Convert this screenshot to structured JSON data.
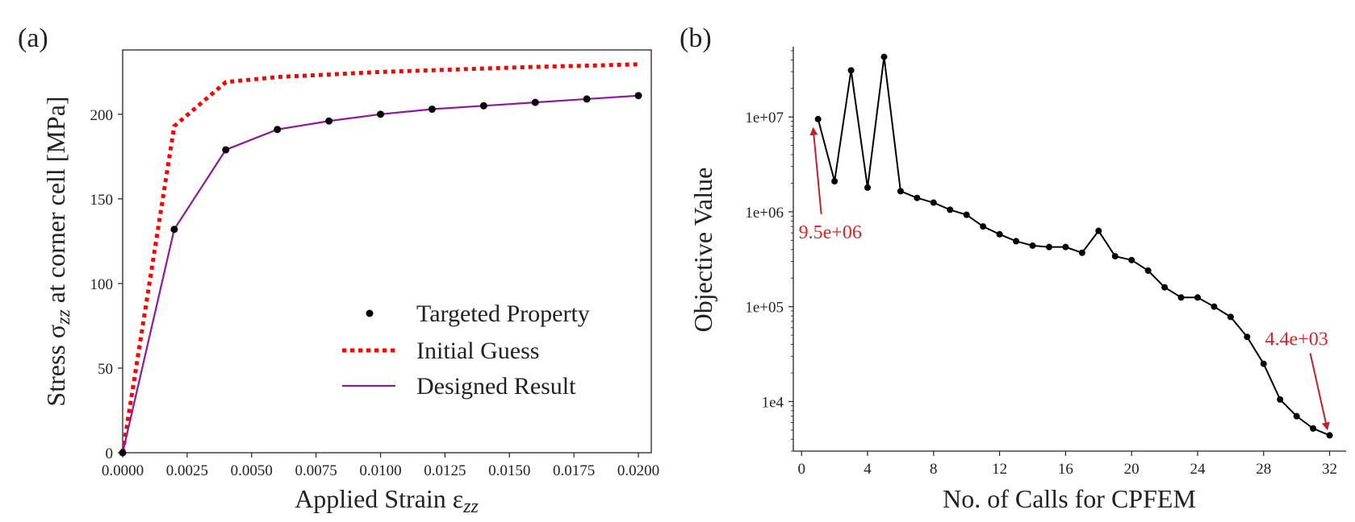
{
  "panel_labels": {
    "a": "(a)",
    "b": "(b)"
  },
  "chart_data": [
    {
      "type": "line",
      "panel": "(a)",
      "xlabel": "Applied Strain ε",
      "xlabel_sub": "zz",
      "ylabel_prefix": "Stress σ",
      "ylabel_sub": "zz",
      "ylabel_suffix": " at corner cell [MPa]",
      "xlim": [
        0,
        0.0205
      ],
      "ylim": [
        0,
        238
      ],
      "xticks": [
        0,
        0.0025,
        0.005,
        0.0075,
        0.01,
        0.0125,
        0.015,
        0.0175,
        0.02
      ],
      "xtick_labels": [
        "0.0000",
        "0.0025",
        "0.0050",
        "0.0075",
        "0.0100",
        "0.0125",
        "0.0150",
        "0.0175",
        "0.0200"
      ],
      "yticks": [
        0,
        50,
        100,
        150,
        200
      ],
      "ytick_labels": [
        "0",
        "50",
        "100",
        "150",
        "200"
      ],
      "grid": false,
      "legend_position": "lower-right",
      "series": [
        {
          "name": "Targeted Property",
          "style": "markers",
          "color": "#000000",
          "x": [
            0,
            0.002,
            0.004,
            0.006,
            0.008,
            0.01,
            0.012,
            0.014,
            0.016,
            0.018,
            0.02
          ],
          "y": [
            0,
            132,
            179,
            191,
            196,
            200,
            203,
            205,
            207,
            209,
            211
          ]
        },
        {
          "name": "Initial Guess",
          "style": "dotted",
          "color": "#ff0000",
          "x": [
            0,
            0.002,
            0.004,
            0.006,
            0.008,
            0.01,
            0.012,
            0.014,
            0.016,
            0.018,
            0.02
          ],
          "y": [
            0,
            193,
            219,
            222,
            223.5,
            225,
            226,
            227,
            228,
            228.7,
            229.5
          ]
        },
        {
          "name": "Designed Result",
          "style": "solid",
          "color": "#8b1a9a",
          "x": [
            0,
            0.002,
            0.004,
            0.006,
            0.008,
            0.01,
            0.012,
            0.014,
            0.016,
            0.018,
            0.02
          ],
          "y": [
            0,
            132,
            179,
            191,
            196,
            200,
            203,
            205,
            207,
            209,
            211
          ]
        }
      ]
    },
    {
      "type": "line",
      "panel": "(b)",
      "xlabel": "No. of Calls for CPFEM",
      "ylabel": "Objective Value",
      "yscale": "log",
      "xlim": [
        -0.5,
        33
      ],
      "ylim": [
        3000,
        55000000
      ],
      "xticks": [
        0,
        4,
        8,
        12,
        16,
        20,
        24,
        28,
        32
      ],
      "xtick_labels": [
        "0",
        "4",
        "8",
        "12",
        "16",
        "20",
        "24",
        "28",
        "32"
      ],
      "yticks": [
        10000,
        100000,
        1000000,
        10000000
      ],
      "ytick_labels": [
        "1e4",
        "1e+05",
        "1e+06",
        "1e+07"
      ],
      "grid": false,
      "series": [
        {
          "style": "line-markers",
          "color": "#000000",
          "x": [
            1,
            2,
            3,
            4,
            5,
            6,
            7,
            8,
            9,
            10,
            11,
            12,
            13,
            14,
            15,
            16,
            17,
            18,
            19,
            20,
            21,
            22,
            23,
            24,
            25,
            26,
            27,
            28,
            29,
            30,
            31,
            32
          ],
          "y": [
            9500000,
            2100000,
            31000000,
            1800000,
            43000000,
            1650000,
            1400000,
            1250000,
            1050000,
            930000,
            700000,
            580000,
            490000,
            440000,
            425000,
            425000,
            370000,
            630000,
            340000,
            310000,
            240000,
            160000,
            125000,
            125000,
            100000,
            78000,
            48000,
            25000,
            10500,
            7000,
            5200,
            4400
          ]
        }
      ],
      "annotations": [
        {
          "text": "9.5e+06",
          "x": 1,
          "y": 9500000,
          "color": "#d9262e"
        },
        {
          "text": "4.4e+03",
          "x": 32,
          "y": 4400,
          "color": "#d9262e"
        }
      ]
    }
  ]
}
